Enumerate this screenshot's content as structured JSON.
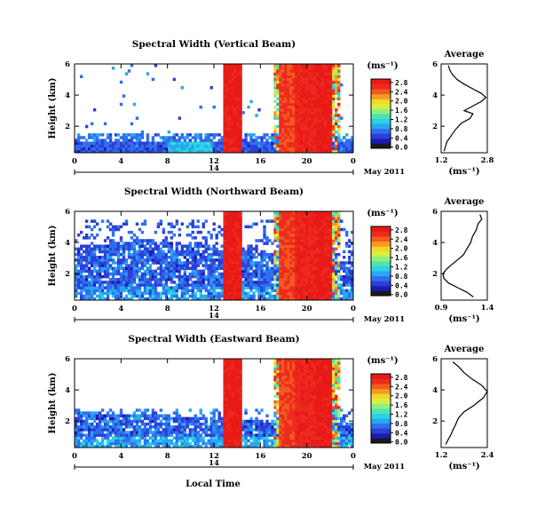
{
  "figure": {
    "xlabel": "Local Time",
    "date_label": "May 2011",
    "day_label": "14",
    "colorbar_unit": "(ms⁻¹)",
    "avg_title": "Average",
    "avg_xlabel": "(ms⁻¹)"
  },
  "colormap": [
    "#1a1a1a",
    "#1b1bb0",
    "#2d3fd6",
    "#2f6fee",
    "#2aa6f2",
    "#29d4e0",
    "#4fe3b0",
    "#8ff080",
    "#d8f040",
    "#f5d62a",
    "#f59a22",
    "#f25a1e",
    "#ee2a1e",
    "#e81a18"
  ],
  "chart_data": [
    {
      "type": "heatmap",
      "title": "Spectral Width (Vertical Beam)",
      "xlabel": "",
      "ylabel": "Height (km)",
      "x_ticks": [
        "0",
        "4",
        "8",
        "12",
        "16",
        "20",
        "0"
      ],
      "xlim": [
        0,
        24
      ],
      "y_ticks": [
        "2",
        "4",
        "6"
      ],
      "ylim": [
        0.3,
        6
      ],
      "colorbar_ticks": [
        "0.0",
        "0.4",
        "0.8",
        "1.2",
        "1.6",
        "2.0",
        "2.4",
        "2.8"
      ],
      "clim": [
        0,
        3.0
      ],
      "average": {
        "type": "line",
        "title": "Average",
        "x_ticks": [
          "1.2",
          "2.8"
        ],
        "xlim": [
          1.2,
          2.8
        ],
        "y_ticks": [
          "2",
          "4",
          "6"
        ],
        "ylim": [
          0.3,
          6
        ],
        "points": [
          [
            1.3,
            0.4
          ],
          [
            1.35,
            0.7
          ],
          [
            1.4,
            1.0
          ],
          [
            1.55,
            1.4
          ],
          [
            1.7,
            1.8
          ],
          [
            1.9,
            2.2
          ],
          [
            2.2,
            2.5
          ],
          [
            2.3,
            2.8
          ],
          [
            2.0,
            3.0
          ],
          [
            2.3,
            3.3
          ],
          [
            2.6,
            3.6
          ],
          [
            2.75,
            3.85
          ],
          [
            2.6,
            4.1
          ],
          [
            2.3,
            4.4
          ],
          [
            2.0,
            4.7
          ],
          [
            1.75,
            5.0
          ],
          [
            1.6,
            5.3
          ],
          [
            1.5,
            5.6
          ],
          [
            1.45,
            5.9
          ]
        ]
      }
    },
    {
      "type": "heatmap",
      "title": "Spectral Width (Northward Beam)",
      "xlabel": "",
      "ylabel": "Height (km)",
      "x_ticks": [
        "0",
        "4",
        "8",
        "12",
        "16",
        "20",
        "0"
      ],
      "xlim": [
        0,
        24
      ],
      "y_ticks": [
        "2",
        "4",
        "6"
      ],
      "ylim": [
        0.3,
        6
      ],
      "colorbar_ticks": [
        "0.0",
        "0.4",
        "0.8",
        "1.2",
        "1.6",
        "2.0",
        "2.4",
        "2.8"
      ],
      "clim": [
        0,
        3.0
      ],
      "average": {
        "type": "line",
        "title": "Average",
        "x_ticks": [
          "0.9",
          "1.4"
        ],
        "xlim": [
          0.9,
          1.4
        ],
        "y_ticks": [
          "2",
          "4",
          "6"
        ],
        "ylim": [
          0.3,
          6
        ],
        "points": [
          [
            1.25,
            0.5
          ],
          [
            1.18,
            0.8
          ],
          [
            1.08,
            1.1
          ],
          [
            0.98,
            1.4
          ],
          [
            0.93,
            1.7
          ],
          [
            0.92,
            2.0
          ],
          [
            0.96,
            2.3
          ],
          [
            1.02,
            2.6
          ],
          [
            1.08,
            2.9
          ],
          [
            1.14,
            3.2
          ],
          [
            1.18,
            3.6
          ],
          [
            1.22,
            4.0
          ],
          [
            1.24,
            4.4
          ],
          [
            1.28,
            4.8
          ],
          [
            1.3,
            5.2
          ],
          [
            1.34,
            5.5
          ],
          [
            1.32,
            5.8
          ]
        ]
      }
    },
    {
      "type": "heatmap",
      "title": "Spectral Width (Eastward Beam)",
      "xlabel": "",
      "ylabel": "Height (km)",
      "x_ticks": [
        "0",
        "4",
        "8",
        "12",
        "16",
        "20",
        "0"
      ],
      "xlim": [
        0,
        24
      ],
      "y_ticks": [
        "2",
        "4",
        "6"
      ],
      "ylim": [
        0.3,
        6
      ],
      "colorbar_ticks": [
        "0.0",
        "0.4",
        "0.8",
        "1.2",
        "1.6",
        "2.0",
        "2.4",
        "2.8"
      ],
      "clim": [
        0,
        3.0
      ],
      "average": {
        "type": "line",
        "title": "Average",
        "x_ticks": [
          "1.2",
          "2.4"
        ],
        "xlim": [
          1.2,
          2.4
        ],
        "y_ticks": [
          "2",
          "4",
          "6"
        ],
        "ylim": [
          0.3,
          6
        ],
        "points": [
          [
            1.32,
            0.5
          ],
          [
            1.38,
            0.8
          ],
          [
            1.45,
            1.1
          ],
          [
            1.5,
            1.4
          ],
          [
            1.58,
            1.8
          ],
          [
            1.65,
            2.2
          ],
          [
            1.8,
            2.6
          ],
          [
            2.05,
            3.0
          ],
          [
            2.3,
            3.5
          ],
          [
            2.4,
            3.9
          ],
          [
            2.25,
            4.3
          ],
          [
            2.0,
            4.7
          ],
          [
            1.8,
            5.1
          ],
          [
            1.65,
            5.5
          ],
          [
            1.5,
            5.8
          ]
        ]
      }
    }
  ]
}
